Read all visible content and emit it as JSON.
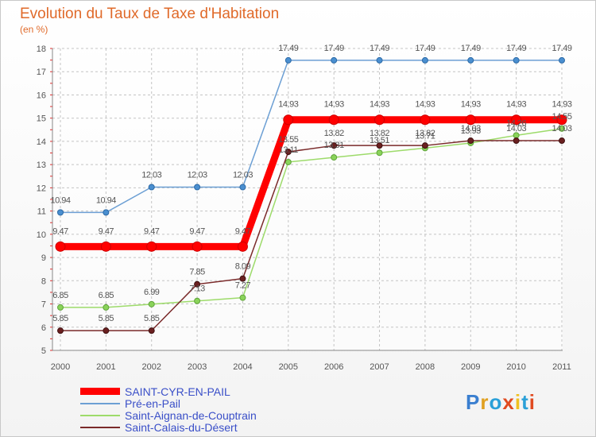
{
  "title": "Evolution du Taux de Taxe d'Habitation",
  "subtitle": "(en %)",
  "logo_text": "Proxiti",
  "chart_data": {
    "type": "line",
    "title": "Evolution du Taux de Taxe d'Habitation",
    "ylabel": "(en %)",
    "xlabel": "",
    "ylim": [
      5,
      18
    ],
    "yticks": [
      "5",
      "6",
      "7",
      "8",
      "9",
      "10",
      "11",
      "12",
      "13",
      "14",
      "15",
      "16",
      "17",
      "18"
    ],
    "categories": [
      "2000",
      "2001",
      "2002",
      "2003",
      "2004",
      "2005",
      "2006",
      "2007",
      "2008",
      "2009",
      "2010",
      "2011"
    ],
    "grid": true,
    "legend_position": "bottom-left",
    "series": [
      {
        "name": "SAINT-CYR-EN-PAIL",
        "color": "#ff0000",
        "values": [
          9.47,
          9.47,
          9.47,
          9.47,
          9.47,
          14.93,
          14.93,
          14.93,
          14.93,
          14.93,
          14.93,
          14.93
        ],
        "labels": [
          "9.47",
          "9.47",
          "9.47",
          "9.47",
          "9.47",
          "14.93",
          "14.93",
          "14.93",
          "14.93",
          "14.93",
          "14.93",
          "14.93"
        ]
      },
      {
        "name": "Pré-en-Pail",
        "color": "#6c9fd4",
        "values": [
          10.94,
          10.94,
          12.03,
          12.03,
          12.03,
          17.49,
          17.49,
          17.49,
          17.49,
          17.49,
          17.49,
          17.49
        ],
        "labels": [
          "10.94",
          "10.94",
          "12.03",
          "12.03",
          "12.03",
          "17.49",
          "17.49",
          "17.49",
          "17.49",
          "17.49",
          "17.49",
          "17.49"
        ]
      },
      {
        "name": "Saint-Aignan-de-Couptrain",
        "color": "#9ddb6a",
        "values": [
          6.85,
          6.85,
          6.99,
          7.13,
          7.27,
          13.11,
          13.31,
          13.51,
          13.71,
          13.93,
          14.26,
          14.55
        ],
        "labels": [
          "6.85",
          "6.85",
          "6.99",
          "7.13",
          "7.27",
          "13.11",
          "13.31",
          "13.51",
          "13.71",
          "13.93",
          "14.26",
          "14.55"
        ]
      },
      {
        "name": "Saint-Calais-du-Désert",
        "color": "#7a2a2a",
        "values": [
          5.85,
          5.85,
          5.85,
          7.85,
          8.09,
          13.55,
          13.82,
          13.82,
          13.82,
          14.03,
          14.03,
          14.03
        ],
        "labels": [
          "5.85",
          "5.85",
          "5.85",
          "7.85",
          "8.09",
          "13.55",
          "13.82",
          "13.82",
          "13.82",
          "14.03",
          "14.03",
          "14.03"
        ]
      }
    ]
  }
}
